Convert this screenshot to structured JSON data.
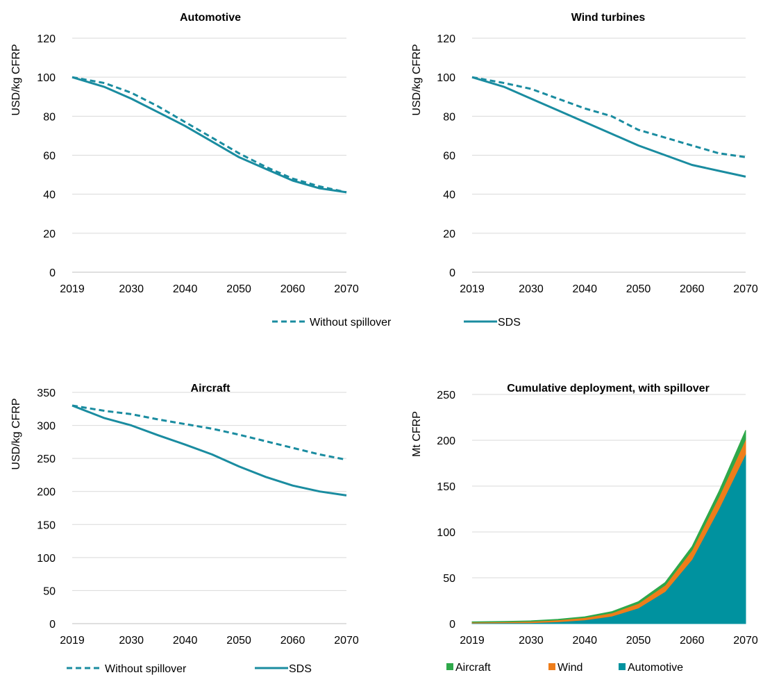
{
  "chart_data": [
    {
      "type": "line",
      "title": "Automotive",
      "ylabel": "USD/kg CFRP",
      "xlabel": "",
      "xlim": [
        2019,
        2070
      ],
      "ylim": [
        0,
        120
      ],
      "yticks": [
        0,
        20,
        40,
        60,
        80,
        100,
        120
      ],
      "xticks": [
        2019,
        2030,
        2040,
        2050,
        2060,
        2070
      ],
      "grid": true,
      "series": [
        {
          "name": "Without spillover",
          "style": "dashed",
          "color": "#1a8ca0",
          "x": [
            2019,
            2025,
            2030,
            2035,
            2040,
            2045,
            2050,
            2055,
            2060,
            2065,
            2070
          ],
          "y": [
            100,
            97,
            92,
            85,
            77,
            69,
            61,
            54,
            48,
            44,
            41
          ]
        },
        {
          "name": "SDS",
          "style": "solid",
          "color": "#1a8ca0",
          "x": [
            2019,
            2025,
            2030,
            2035,
            2040,
            2045,
            2050,
            2055,
            2060,
            2065,
            2070
          ],
          "y": [
            100,
            95,
            89,
            82,
            75,
            67,
            59,
            53,
            47,
            43,
            41
          ]
        }
      ]
    },
    {
      "type": "line",
      "title": "Wind turbines",
      "ylabel": "USD/kg CFRP",
      "xlabel": "",
      "xlim": [
        2019,
        2070
      ],
      "ylim": [
        0,
        120
      ],
      "yticks": [
        0,
        20,
        40,
        60,
        80,
        100,
        120
      ],
      "xticks": [
        2019,
        2030,
        2040,
        2050,
        2060,
        2070
      ],
      "grid": true,
      "series": [
        {
          "name": "Without spillover",
          "style": "dashed",
          "color": "#1a8ca0",
          "x": [
            2019,
            2025,
            2030,
            2035,
            2040,
            2045,
            2050,
            2055,
            2060,
            2065,
            2070
          ],
          "y": [
            100,
            97,
            94,
            89,
            84,
            80,
            73,
            69,
            65,
            61,
            59
          ]
        },
        {
          "name": "SDS",
          "style": "solid",
          "color": "#1a8ca0",
          "x": [
            2019,
            2025,
            2030,
            2035,
            2040,
            2045,
            2050,
            2055,
            2060,
            2065,
            2070
          ],
          "y": [
            100,
            95,
            89,
            83,
            77,
            71,
            65,
            60,
            55,
            52,
            49
          ]
        }
      ]
    },
    {
      "type": "line",
      "title": "Aircraft",
      "ylabel": "USD/kg CFRP",
      "xlabel": "",
      "xlim": [
        2019,
        2070
      ],
      "ylim": [
        0,
        350
      ],
      "yticks": [
        0,
        50,
        100,
        150,
        200,
        250,
        300,
        350
      ],
      "xticks": [
        2019,
        2030,
        2040,
        2050,
        2060,
        2070
      ],
      "grid": true,
      "series": [
        {
          "name": "Without spillover",
          "style": "dashed",
          "color": "#1a8ca0",
          "x": [
            2019,
            2025,
            2030,
            2035,
            2040,
            2045,
            2050,
            2055,
            2060,
            2065,
            2070
          ],
          "y": [
            330,
            322,
            317,
            309,
            302,
            295,
            286,
            276,
            266,
            256,
            248
          ]
        },
        {
          "name": "SDS",
          "style": "solid",
          "color": "#1a8ca0",
          "x": [
            2019,
            2025,
            2030,
            2035,
            2040,
            2045,
            2050,
            2055,
            2060,
            2065,
            2070
          ],
          "y": [
            330,
            311,
            300,
            285,
            271,
            256,
            238,
            222,
            209,
            200,
            194
          ]
        }
      ]
    },
    {
      "type": "area",
      "stacked": true,
      "title": "Cumulative deployment, with spillover",
      "ylabel": "Mt CFRP",
      "xlabel": "",
      "xlim": [
        2019,
        2070
      ],
      "ylim": [
        0,
        250
      ],
      "yticks": [
        0,
        50,
        100,
        150,
        200,
        250
      ],
      "xticks": [
        2019,
        2030,
        2040,
        2050,
        2060,
        2070
      ],
      "grid": true,
      "x": [
        2019,
        2025,
        2030,
        2035,
        2040,
        2045,
        2050,
        2055,
        2060,
        2065,
        2070
      ],
      "series": [
        {
          "name": "Automotive",
          "color": "#00929f",
          "values": [
            0.5,
            0.8,
            1,
            2,
            4,
            8,
            17,
            35,
            70,
            125,
            185
          ]
        },
        {
          "name": "Wind",
          "color": "#ee7d1a",
          "values": [
            1,
            1.2,
            1.5,
            2,
            2.5,
            3.5,
            5,
            7,
            10,
            13,
            16
          ]
        },
        {
          "name": "Aircraft",
          "color": "#2ea84a",
          "values": [
            0.5,
            0.5,
            0.6,
            0.8,
            1,
            1.5,
            2,
            3,
            4,
            6,
            10
          ]
        }
      ]
    }
  ],
  "legends": {
    "top": {
      "dashed": "Without spillover",
      "solid": "SDS"
    },
    "bottom_left": {
      "dashed": "Without spillover",
      "solid": "SDS"
    },
    "bottom_right": [
      "Aircraft",
      "Wind",
      "Automotive"
    ]
  }
}
